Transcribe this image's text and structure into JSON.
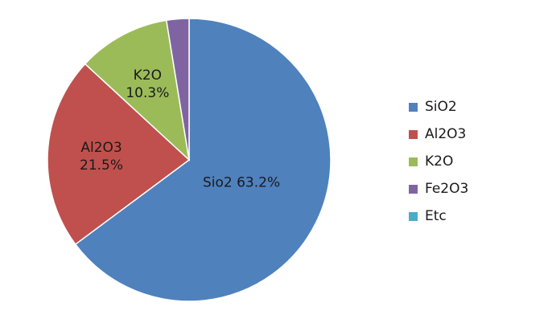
{
  "chart_data": {
    "type": "pie",
    "slices": [
      {
        "name": "SiO2",
        "value": 63.2,
        "color": "#4f81bd",
        "label_text": "Sio2",
        "value_text": "63.2%",
        "label_layout": "inline"
      },
      {
        "name": "Al2O3",
        "value": 21.5,
        "color": "#c0504d",
        "label_text": "Al2O3",
        "value_text": "21.5%",
        "label_layout": "stacked"
      },
      {
        "name": "K2O",
        "value": 10.3,
        "color": "#9bbb59",
        "label_text": "K2O",
        "value_text": "10.3%",
        "label_layout": "stacked"
      },
      {
        "name": "Fe2O3",
        "value": 2.5,
        "color": "#8064a2",
        "label_text": "",
        "value_text": "",
        "label_layout": "none"
      },
      {
        "name": "Etc",
        "value": 0.0,
        "color": "#4bacc6",
        "label_text": "",
        "value_text": "",
        "label_layout": "none"
      }
    ],
    "legend": {
      "position": "right",
      "items": [
        "SiO2",
        "Al2O3",
        "K2O",
        "Fe2O3",
        "Etc"
      ]
    },
    "start_angle": "12 o'clock",
    "direction": "clockwise"
  }
}
